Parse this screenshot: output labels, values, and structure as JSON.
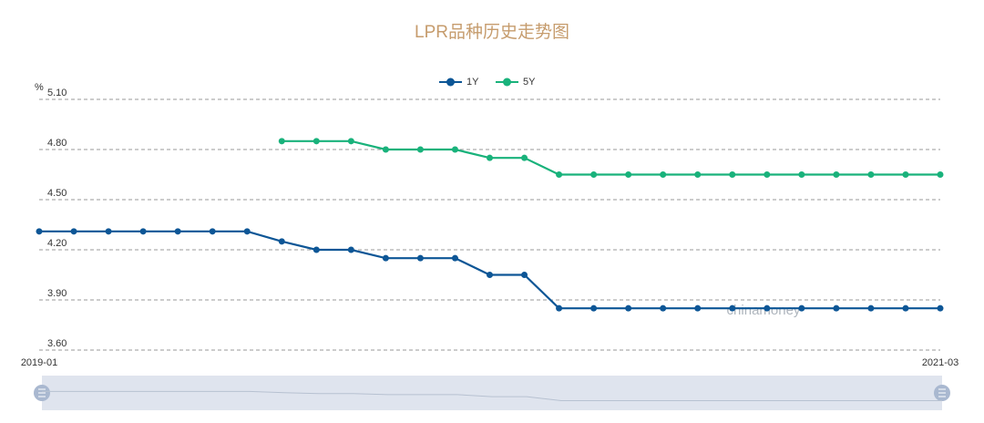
{
  "chart_data": {
    "type": "line",
    "title": "LPR品种历史走势图",
    "y_label": "%",
    "watermark": "chinamoney",
    "categories": [
      "2019-01",
      null,
      null,
      null,
      null,
      null,
      null,
      null,
      null,
      null,
      null,
      null,
      null,
      null,
      null,
      null,
      null,
      null,
      null,
      null,
      null,
      null,
      null,
      null,
      null,
      null,
      "2021-03"
    ],
    "series": [
      {
        "name": "1Y",
        "color": "#0d5696",
        "values": [
          4.31,
          4.31,
          4.31,
          4.31,
          4.31,
          4.31,
          4.31,
          4.25,
          4.2,
          4.2,
          4.15,
          4.15,
          4.15,
          4.05,
          4.05,
          3.85,
          3.85,
          3.85,
          3.85,
          3.85,
          3.85,
          3.85,
          3.85,
          3.85,
          3.85,
          3.85,
          3.85
        ]
      },
      {
        "name": "5Y",
        "color": "#19b27b",
        "values": [
          null,
          null,
          null,
          null,
          null,
          null,
          null,
          4.85,
          4.85,
          4.85,
          4.8,
          4.8,
          4.8,
          4.75,
          4.75,
          4.65,
          4.65,
          4.65,
          4.65,
          4.65,
          4.65,
          4.65,
          4.65,
          4.65,
          4.65,
          4.65,
          4.65
        ]
      }
    ],
    "ylim": [
      3.6,
      5.1
    ],
    "yticks": [
      {
        "value": 3.6,
        "label": "3.60"
      },
      {
        "value": 3.9,
        "label": "3.90"
      },
      {
        "value": 4.2,
        "label": "4.20"
      },
      {
        "value": 4.5,
        "label": "4.50"
      },
      {
        "value": 4.8,
        "label": "4.80"
      },
      {
        "value": 5.1,
        "label": "5.10"
      }
    ],
    "grid": true
  }
}
